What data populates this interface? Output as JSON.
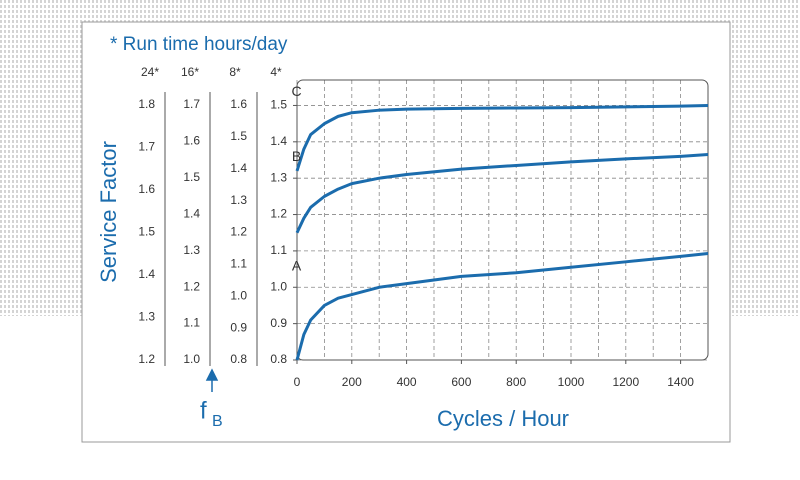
{
  "chart_data": {
    "type": "line",
    "title": "* Run time hours/day",
    "y_axis_label": "Service Factor",
    "x_axis_label": "Cycles / Hour",
    "f_label": "f",
    "f_subscript": "B",
    "main_axis_header": "4*",
    "x": [
      0,
      25,
      50,
      100,
      150,
      200,
      300,
      400,
      600,
      800,
      1000,
      1200,
      1400,
      1500
    ],
    "series": [
      {
        "name": "C",
        "color": "#1b6cad",
        "values": [
          1.32,
          1.38,
          1.42,
          1.45,
          1.47,
          1.48,
          1.487,
          1.49,
          1.492,
          1.493,
          1.494,
          1.496,
          1.498,
          1.5
        ]
      },
      {
        "name": "B",
        "color": "#1b6cad",
        "values": [
          1.15,
          1.19,
          1.22,
          1.25,
          1.27,
          1.285,
          1.3,
          1.31,
          1.325,
          1.335,
          1.345,
          1.353,
          1.36,
          1.365
        ]
      },
      {
        "name": "A",
        "color": "#1b6cad",
        "values": [
          0.8,
          0.87,
          0.91,
          0.95,
          0.97,
          0.98,
          1.0,
          1.01,
          1.03,
          1.04,
          1.055,
          1.07,
          1.085,
          1.093
        ]
      }
    ],
    "xlim": [
      0,
      1500
    ],
    "xticks": [
      0,
      200,
      400,
      600,
      800,
      1000,
      1200,
      1400
    ],
    "x_minor_ticks": [
      100,
      300,
      500,
      700,
      900,
      1100,
      1300
    ],
    "ylim": [
      0.8,
      1.57
    ],
    "yticks": [
      {
        "value": 0.8,
        "label": "0.8"
      },
      {
        "value": 0.9,
        "label": "0.9"
      },
      {
        "value": 1.0,
        "label": "1.0"
      },
      {
        "value": 1.1,
        "label": "1.1"
      },
      {
        "value": 1.2,
        "label": "1.2"
      },
      {
        "value": 1.3,
        "label": "1.3"
      },
      {
        "value": 1.4,
        "label": "1.4"
      },
      {
        "value": 1.5,
        "label": "1.5"
      }
    ],
    "grid": true,
    "extra_axes": [
      {
        "header": "24*",
        "lim": [
          1.2,
          1.8
        ],
        "ticks": [
          {
            "value": 1.2,
            "label": "1.2"
          },
          {
            "value": 1.3,
            "label": "1.3"
          },
          {
            "value": 1.4,
            "label": "1.4"
          },
          {
            "value": 1.5,
            "label": "1.5"
          },
          {
            "value": 1.6,
            "label": "1.6"
          },
          {
            "value": 1.7,
            "label": "1.7"
          },
          {
            "value": 1.8,
            "label": "1.8"
          }
        ]
      },
      {
        "header": "16*",
        "lim": [
          1.0,
          1.7
        ],
        "ticks": [
          {
            "value": 1.0,
            "label": "1.0"
          },
          {
            "value": 1.1,
            "label": "1.1"
          },
          {
            "value": 1.2,
            "label": "1.2"
          },
          {
            "value": 1.3,
            "label": "1.3"
          },
          {
            "value": 1.4,
            "label": "1.4"
          },
          {
            "value": 1.5,
            "label": "1.5"
          },
          {
            "value": 1.6,
            "label": "1.6"
          },
          {
            "value": 1.7,
            "label": "1.7"
          }
        ]
      },
      {
        "header": "8*",
        "lim": [
          0.8,
          1.6
        ],
        "ticks": [
          {
            "value": 0.8,
            "label": "0.8"
          },
          {
            "value": 0.9,
            "label": "0.9"
          },
          {
            "value": 1.0,
            "label": "1.0"
          },
          {
            "value": 1.1,
            "label": "1.1"
          },
          {
            "value": 1.2,
            "label": "1.2"
          },
          {
            "value": 1.3,
            "label": "1.3"
          },
          {
            "value": 1.4,
            "label": "1.4"
          },
          {
            "value": 1.5,
            "label": "1.5"
          },
          {
            "value": 1.6,
            "label": "1.6"
          }
        ]
      }
    ]
  }
}
